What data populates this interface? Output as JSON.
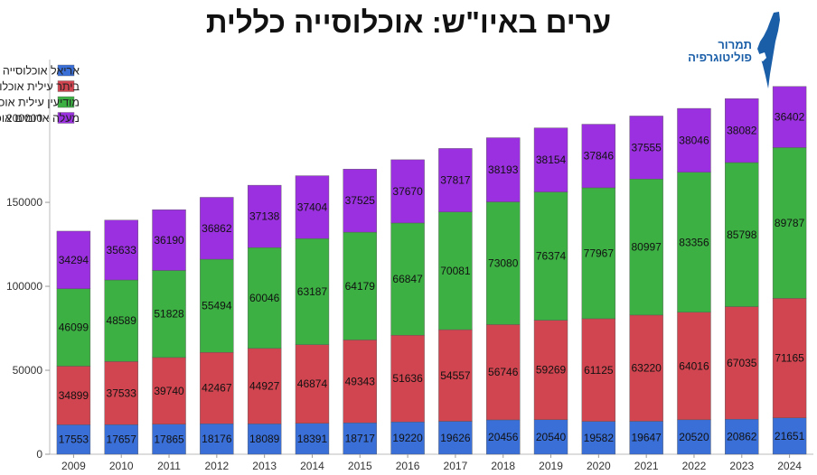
{
  "title": "ערים באיו\"ש: אוכלוסייה כללית",
  "logo": {
    "line1": "תמרור",
    "line2": "פוליטוגרפיה",
    "color": "#1a5ea8"
  },
  "chart_data": {
    "type": "bar",
    "stacked": true,
    "categories": [
      "2009",
      "2010",
      "2011",
      "2012",
      "2013",
      "2014",
      "2015",
      "2016",
      "2017",
      "2018",
      "2019",
      "2020",
      "2021",
      "2022",
      "2023",
      "2024"
    ],
    "series": [
      {
        "name": "אריאל אוכלוסייה",
        "color": "#3a6fd8",
        "values": [
          17553,
          17657,
          17865,
          18176,
          18089,
          18391,
          18717,
          19220,
          19626,
          20456,
          20540,
          19582,
          19647,
          20520,
          20862,
          21651
        ]
      },
      {
        "name": "ביתר עילית אוכלוסייה",
        "color": "#d0454f",
        "values": [
          34899,
          37533,
          39740,
          42467,
          44927,
          46874,
          49343,
          51636,
          54557,
          56746,
          59269,
          61125,
          63220,
          64016,
          67035,
          71165
        ]
      },
      {
        "name": "מודיעין עילית אוכלוסייה",
        "color": "#3cb043",
        "values": [
          46099,
          48589,
          51828,
          55494,
          60046,
          63187,
          64179,
          66847,
          70081,
          73080,
          76374,
          77967,
          80997,
          83356,
          85798,
          89787
        ]
      },
      {
        "name": "מעלה אדומים אוכלוסייה",
        "color": "#9b30e0",
        "values": [
          34294,
          35633,
          36190,
          36862,
          37138,
          37404,
          37525,
          37670,
          37817,
          38193,
          38154,
          37846,
          37555,
          38046,
          38082,
          36402
        ]
      }
    ],
    "y_ticks": [
      "0",
      "50000",
      "100000",
      "150000",
      "200000"
    ],
    "ylim": [
      0,
      235000
    ],
    "legend_position": "top-left",
    "grid": false
  }
}
